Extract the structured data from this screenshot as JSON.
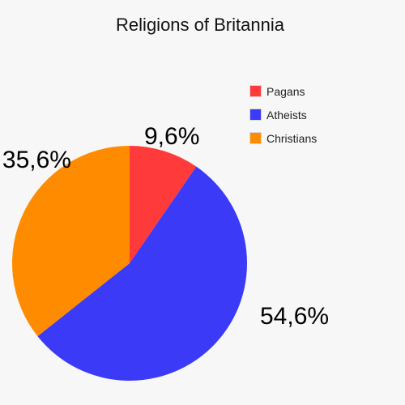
{
  "chart_data": {
    "type": "pie",
    "title": "Religions of Britannia",
    "categories": [
      "Pagans",
      "Atheists",
      "Christians"
    ],
    "values": [
      9.6,
      54.6,
      35.6
    ],
    "value_labels": [
      "9,6%",
      "54,6%",
      "35,6%"
    ],
    "colors": [
      "#ff3a3a",
      "#3a3af7",
      "#ff8c00"
    ],
    "legend_position": "top-right",
    "start_angle_deg": 0,
    "direction": "clockwise"
  }
}
